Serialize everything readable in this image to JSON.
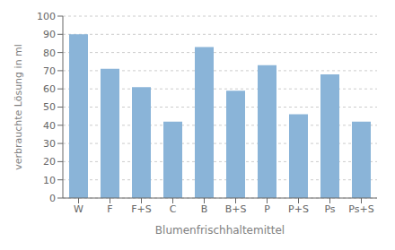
{
  "chart_data": {
    "type": "bar",
    "categories": [
      "W",
      "F",
      "F+S",
      "C",
      "B",
      "B+S",
      "P",
      "P+S",
      "Ps",
      "Ps+S"
    ],
    "values": [
      90,
      71,
      61,
      42,
      83,
      59,
      73,
      46,
      68,
      42
    ],
    "color": "#8ab4d8",
    "xlabel": "Blumenfrischhaltemittel",
    "ylabel": "verbrauchte Lösung in ml",
    "ylim": [
      0,
      100
    ],
    "yticks": [
      0,
      10,
      20,
      30,
      40,
      50,
      60,
      70,
      80,
      90,
      100
    ],
    "grid": true
  }
}
